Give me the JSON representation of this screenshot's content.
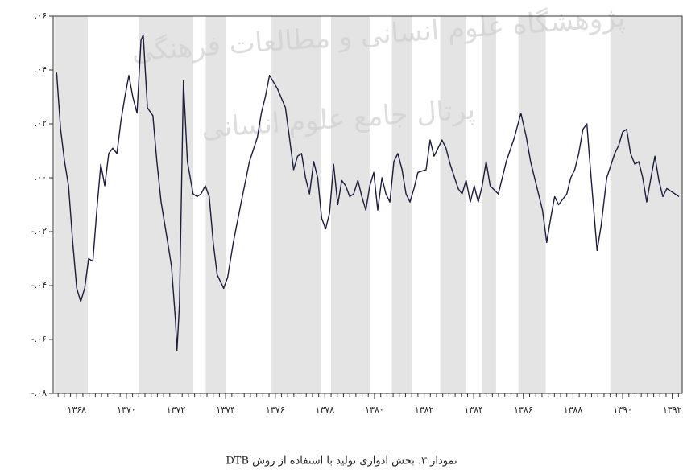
{
  "chart_data": {
    "type": "line",
    "caption": "نمودار ۳. بخش ادواری تولید با استفاده از روش DTB",
    "annotations": [
      "پژوهشگاه علوم انسانی و مطالعات فرهنگی",
      "پرتال جامع علوم انسانی"
    ],
    "xlim": [
      1367.05,
      1392.4
    ],
    "x_minor_tick_step": 0.25,
    "xticks": [
      {
        "value": 1368,
        "label": "۱۳۶۸"
      },
      {
        "value": 1370,
        "label": "۱۳۷۰"
      },
      {
        "value": 1372,
        "label": "۱۳۷۲"
      },
      {
        "value": 1374,
        "label": "۱۳۷۴"
      },
      {
        "value": 1376,
        "label": "۱۳۷۶"
      },
      {
        "value": 1378,
        "label": "۱۳۷۸"
      },
      {
        "value": 1380,
        "label": "۱۳۸۰"
      },
      {
        "value": 1382,
        "label": "۱۳۸۲"
      },
      {
        "value": 1384,
        "label": "۱۳۸۴"
      },
      {
        "value": 1386,
        "label": "۱۳۸۶"
      },
      {
        "value": 1388,
        "label": "۱۳۸۸"
      },
      {
        "value": 1390,
        "label": "۱۳۹۰"
      },
      {
        "value": 1392,
        "label": "۱۳۹۲"
      }
    ],
    "ylim": [
      -0.08,
      0.06
    ],
    "yticks": [
      {
        "value": 0.06,
        "label": ".۰۶"
      },
      {
        "value": 0.04,
        "label": ".۰۴"
      },
      {
        "value": 0.02,
        "label": ".۰۲"
      },
      {
        "value": 0,
        "label": ".۰۰"
      },
      {
        "value": -0.02,
        "label": "-.۰۲"
      },
      {
        "value": -0.04,
        "label": "-.۰۴"
      },
      {
        "value": -0.06,
        "label": "-.۰۶"
      },
      {
        "value": -0.08,
        "label": "-.۰۸"
      }
    ],
    "shaded_periods": [
      [
        1367.1,
        1368.45
      ],
      [
        1370.5,
        1372.7
      ],
      [
        1373.2,
        1374.0
      ],
      [
        1375.85,
        1377.85
      ],
      [
        1378.25,
        1379.8
      ],
      [
        1380.7,
        1381.5
      ],
      [
        1382.65,
        1383.7
      ],
      [
        1384.35,
        1384.9
      ],
      [
        1385.8,
        1386.9
      ],
      [
        1389.5,
        1392.4
      ]
    ],
    "shade_color": "#e4e4e4",
    "series": [
      {
        "color": "#1c1c3c",
        "x": [
          1367.19,
          1367.35,
          1367.51,
          1367.67,
          1367.84,
          1368.0,
          1368.16,
          1368.32,
          1368.48,
          1368.65,
          1368.81,
          1368.97,
          1369.13,
          1369.29,
          1369.45,
          1369.62,
          1369.78,
          1369.94,
          1370.1,
          1370.26,
          1370.43,
          1370.59,
          1370.68,
          1370.85,
          1371.07,
          1371.23,
          1371.4,
          1371.56,
          1371.72,
          1371.82,
          1371.98,
          1372.04,
          1372.14,
          1372.3,
          1372.46,
          1372.69,
          1372.85,
          1373.01,
          1373.18,
          1373.34,
          1373.5,
          1373.66,
          1373.92,
          1374.08,
          1374.31,
          1374.63,
          1374.96,
          1375.28,
          1375.44,
          1375.6,
          1375.77,
          1376.09,
          1376.41,
          1376.57,
          1376.74,
          1376.9,
          1377.06,
          1377.22,
          1377.38,
          1377.55,
          1377.71,
          1377.87,
          1378.03,
          1378.19,
          1378.35,
          1378.52,
          1378.68,
          1378.84,
          1379.0,
          1379.16,
          1379.33,
          1379.49,
          1379.65,
          1379.81,
          1379.97,
          1380.13,
          1380.3,
          1380.46,
          1380.62,
          1380.78,
          1380.94,
          1381.11,
          1381.27,
          1381.43,
          1381.59,
          1381.75,
          1382.08,
          1382.24,
          1382.4,
          1382.72,
          1382.88,
          1383.05,
          1383.37,
          1383.53,
          1383.69,
          1383.86,
          1384.02,
          1384.18,
          1384.34,
          1384.5,
          1384.66,
          1384.99,
          1385.31,
          1385.64,
          1385.9,
          1386.12,
          1386.29,
          1386.45,
          1386.61,
          1386.77,
          1386.94,
          1387.1,
          1387.26,
          1387.42,
          1387.75,
          1387.91,
          1388.07,
          1388.23,
          1388.4,
          1388.56,
          1388.65,
          1388.81,
          1388.97,
          1389.13,
          1389.36,
          1389.68,
          1389.84,
          1390.0,
          1390.16,
          1390.32,
          1390.49,
          1390.65,
          1390.81,
          1390.97,
          1391.14,
          1391.3,
          1391.46,
          1391.62,
          1391.78,
          1392.11,
          1392.27
        ],
        "values": [
          0.039,
          0.018,
          0.006,
          -0.003,
          -0.024,
          -0.041,
          -0.046,
          -0.041,
          -0.03,
          -0.031,
          -0.012,
          0.005,
          -0.003,
          0.009,
          0.011,
          0.009,
          0.021,
          0.03,
          0.038,
          0.03,
          0.024,
          0.051,
          0.053,
          0.026,
          0.023,
          0.006,
          -0.009,
          -0.018,
          -0.027,
          -0.033,
          -0.053,
          -0.064,
          -0.047,
          0.036,
          0.006,
          -0.006,
          -0.007,
          -0.006,
          -0.003,
          -0.007,
          -0.024,
          -0.036,
          -0.041,
          -0.037,
          -0.024,
          -0.009,
          0.006,
          0.015,
          0.024,
          0.03,
          0.038,
          0.033,
          0.026,
          0.015,
          0.003,
          0.008,
          0.009,
          0.0,
          -0.006,
          0.006,
          0.0,
          -0.015,
          -0.019,
          -0.013,
          0.005,
          -0.01,
          -0.001,
          -0.003,
          -0.007,
          -0.006,
          -0.001,
          -0.007,
          -0.012,
          -0.003,
          0.002,
          -0.012,
          0.0,
          -0.006,
          -0.009,
          0.006,
          0.009,
          0.003,
          -0.006,
          -0.009,
          -0.004,
          0.002,
          0.003,
          0.014,
          0.008,
          0.014,
          0.011,
          0.005,
          -0.004,
          -0.006,
          -0.001,
          -0.009,
          -0.003,
          -0.009,
          -0.003,
          0.006,
          -0.003,
          -0.006,
          0.006,
          0.015,
          0.024,
          0.015,
          0.006,
          0.0,
          -0.006,
          -0.012,
          -0.024,
          -0.015,
          -0.007,
          -0.01,
          -0.006,
          0.0,
          0.003,
          0.009,
          0.018,
          0.02,
          0.009,
          -0.009,
          -0.027,
          -0.018,
          0.0,
          0.009,
          0.012,
          0.017,
          0.018,
          0.009,
          0.005,
          0.006,
          0.0,
          -0.009,
          0.0,
          0.008,
          -0.001,
          -0.007,
          -0.004,
          -0.006,
          -0.007
        ]
      }
    ]
  }
}
